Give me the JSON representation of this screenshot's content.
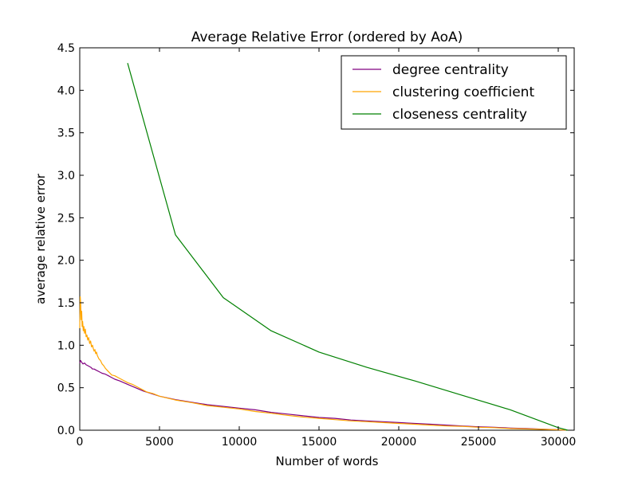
{
  "chart_data": {
    "type": "line",
    "title": "Average Relative Error (ordered by AoA)",
    "xlabel": "Number of words",
    "ylabel": "average relative error",
    "xlim": [
      0,
      31000
    ],
    "ylim": [
      0,
      4.5
    ],
    "x_ticks": [
      0,
      5000,
      10000,
      15000,
      20000,
      25000,
      30000
    ],
    "x_tick_labels": [
      "0",
      "5000",
      "10000",
      "15000",
      "20000",
      "25000",
      "30000"
    ],
    "y_ticks": [
      0,
      0.5,
      1.0,
      1.5,
      2.0,
      2.5,
      3.0,
      3.5,
      4.0,
      4.5
    ],
    "y_tick_labels": [
      "0.0",
      "0.5",
      "1.0",
      "1.5",
      "2.0",
      "2.5",
      "3.0",
      "3.5",
      "4.0",
      "4.5"
    ],
    "grid": false,
    "legend_position": "top-right",
    "series": [
      {
        "name": "degree centrality",
        "color": "#800080",
        "points": [
          [
            0,
            0.79
          ],
          [
            50,
            0.82
          ],
          [
            120,
            0.8
          ],
          [
            200,
            0.78
          ],
          [
            300,
            0.79
          ],
          [
            400,
            0.77
          ],
          [
            500,
            0.76
          ],
          [
            600,
            0.75
          ],
          [
            700,
            0.74
          ],
          [
            800,
            0.72
          ],
          [
            900,
            0.72
          ],
          [
            1000,
            0.71
          ],
          [
            1200,
            0.69
          ],
          [
            1400,
            0.67
          ],
          [
            1600,
            0.66
          ],
          [
            1800,
            0.64
          ],
          [
            2000,
            0.62
          ],
          [
            2200,
            0.6
          ],
          [
            2500,
            0.58
          ],
          [
            3000,
            0.54
          ],
          [
            3500,
            0.5
          ],
          [
            4000,
            0.46
          ],
          [
            4500,
            0.43
          ],
          [
            5000,
            0.4
          ],
          [
            6000,
            0.36
          ],
          [
            7000,
            0.33
          ],
          [
            8000,
            0.3
          ],
          [
            9000,
            0.28
          ],
          [
            10000,
            0.26
          ],
          [
            11000,
            0.24
          ],
          [
            12000,
            0.21
          ],
          [
            13000,
            0.19
          ],
          [
            14000,
            0.17
          ],
          [
            15000,
            0.15
          ],
          [
            16000,
            0.14
          ],
          [
            17000,
            0.12
          ],
          [
            18000,
            0.11
          ],
          [
            19000,
            0.1
          ],
          [
            20000,
            0.09
          ],
          [
            21000,
            0.08
          ],
          [
            22000,
            0.07
          ],
          [
            23000,
            0.06
          ],
          [
            24000,
            0.05
          ],
          [
            25000,
            0.04
          ],
          [
            26000,
            0.035
          ],
          [
            27000,
            0.025
          ],
          [
            28000,
            0.02
          ],
          [
            29000,
            0.012
          ],
          [
            30000,
            0.006
          ],
          [
            30500,
            0.002
          ]
        ]
      },
      {
        "name": "clustering coefficient",
        "color": "#FFA500",
        "points": [
          [
            0,
            1.2
          ],
          [
            30,
            1.57
          ],
          [
            60,
            1.48
          ],
          [
            90,
            1.3
          ],
          [
            120,
            1.4
          ],
          [
            150,
            1.22
          ],
          [
            180,
            1.28
          ],
          [
            220,
            1.17
          ],
          [
            260,
            1.22
          ],
          [
            300,
            1.14
          ],
          [
            350,
            1.19
          ],
          [
            400,
            1.1
          ],
          [
            450,
            1.12
          ],
          [
            500,
            1.06
          ],
          [
            560,
            1.09
          ],
          [
            620,
            1.02
          ],
          [
            680,
            1.05
          ],
          [
            740,
            0.98
          ],
          [
            800,
            1.0
          ],
          [
            850,
            0.96
          ],
          [
            900,
            0.93
          ],
          [
            950,
            0.95
          ],
          [
            1000,
            0.9
          ],
          [
            1050,
            0.92
          ],
          [
            1100,
            0.88
          ],
          [
            1200,
            0.84
          ],
          [
            1300,
            0.82
          ],
          [
            1400,
            0.78
          ],
          [
            1500,
            0.76
          ],
          [
            1600,
            0.73
          ],
          [
            1700,
            0.71
          ],
          [
            1800,
            0.69
          ],
          [
            1900,
            0.67
          ],
          [
            2000,
            0.65
          ],
          [
            2200,
            0.64
          ],
          [
            2400,
            0.62
          ],
          [
            2600,
            0.6
          ],
          [
            2800,
            0.58
          ],
          [
            3000,
            0.56
          ],
          [
            3300,
            0.54
          ],
          [
            3600,
            0.51
          ],
          [
            3900,
            0.48
          ],
          [
            4200,
            0.45
          ],
          [
            4600,
            0.43
          ],
          [
            5000,
            0.4
          ],
          [
            6000,
            0.355
          ],
          [
            7000,
            0.325
          ],
          [
            8000,
            0.29
          ],
          [
            9000,
            0.27
          ],
          [
            10000,
            0.25
          ],
          [
            11000,
            0.22
          ],
          [
            12000,
            0.2
          ],
          [
            13000,
            0.175
          ],
          [
            14000,
            0.155
          ],
          [
            15000,
            0.14
          ],
          [
            16000,
            0.125
          ],
          [
            17000,
            0.11
          ],
          [
            18000,
            0.1
          ],
          [
            19000,
            0.09
          ],
          [
            20000,
            0.08
          ],
          [
            21000,
            0.07
          ],
          [
            22000,
            0.06
          ],
          [
            23000,
            0.05
          ],
          [
            24000,
            0.045
          ],
          [
            25000,
            0.035
          ],
          [
            26000,
            0.03
          ],
          [
            27000,
            0.02
          ],
          [
            28000,
            0.015
          ],
          [
            29000,
            0.01
          ],
          [
            30000,
            0.005
          ],
          [
            30500,
            0.002
          ]
        ]
      },
      {
        "name": "closeness centrality",
        "color": "#008000",
        "points": [
          [
            3000,
            4.32
          ],
          [
            6000,
            2.3
          ],
          [
            9000,
            1.56
          ],
          [
            12000,
            1.17
          ],
          [
            15000,
            0.92
          ],
          [
            18000,
            0.74
          ],
          [
            21000,
            0.58
          ],
          [
            24000,
            0.41
          ],
          [
            27000,
            0.24
          ],
          [
            30000,
            0.03
          ],
          [
            30600,
            0.0
          ]
        ]
      }
    ]
  }
}
